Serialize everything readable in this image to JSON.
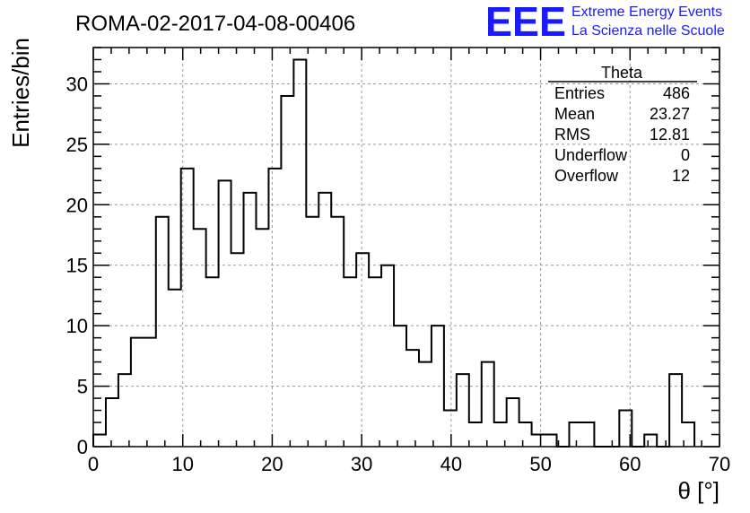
{
  "header": {
    "title": "ROMA-02-2017-04-08-00406",
    "logo_letters": "EEE",
    "logo_line1": "Extreme Energy Events",
    "logo_line2": "La Scienza nelle Scuole",
    "logo_color": "#1a1aff"
  },
  "stats_box": {
    "name": "Theta",
    "rows": [
      {
        "label": "Entries",
        "value": "486"
      },
      {
        "label": "Mean",
        "value": "23.27"
      },
      {
        "label": "RMS",
        "value": "12.81"
      },
      {
        "label": "Underflow",
        "value": "0"
      },
      {
        "label": "Overflow",
        "value": "12"
      }
    ]
  },
  "chart_data": {
    "type": "bar",
    "style": "step-histogram",
    "xlabel": "θ [°]",
    "ylabel": "Entries/bin",
    "xlim": [
      0,
      70
    ],
    "ylim": [
      0,
      33
    ],
    "bin_width": 1.4,
    "grid": true,
    "x_ticks": [
      0,
      10,
      20,
      30,
      40,
      50,
      60,
      70
    ],
    "y_ticks": [
      0,
      5,
      10,
      15,
      20,
      25,
      30
    ],
    "values": [
      1,
      4,
      6,
      9,
      9,
      19,
      13,
      23,
      18,
      14,
      22,
      16,
      21,
      18,
      23,
      29,
      32,
      19,
      21,
      19,
      14,
      16,
      14,
      15,
      10,
      8,
      7,
      10,
      3,
      6,
      2,
      7,
      2,
      4,
      2,
      1,
      1,
      0,
      2,
      2,
      0,
      0,
      3,
      0,
      1,
      0,
      6,
      2
    ]
  }
}
